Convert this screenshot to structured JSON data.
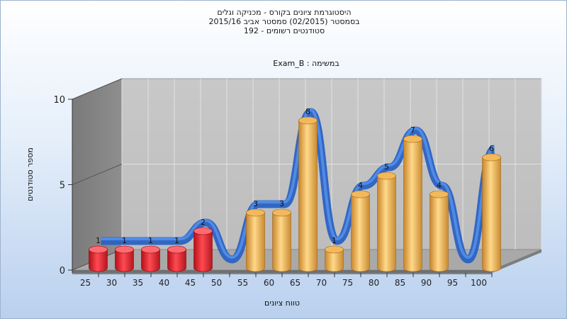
{
  "header": {
    "title_line1": "היסטוגרמת ציונים בקורס - מכניקה וגלים",
    "title_line2": "בסמסטר  (02/2015)  סמסטר אביב 2015/16",
    "title_line3": "192 - סטודנטים רשומים"
  },
  "chart_data": {
    "type": "bar",
    "subtitle": "Exam_B : במשימה",
    "xlabel": "טווח ציונים",
    "ylabel": "מספר סטודנטים",
    "categories": [
      "25",
      "30",
      "35",
      "40",
      "45",
      "50",
      "55",
      "60",
      "65",
      "70",
      "75",
      "80",
      "85",
      "90",
      "95",
      "100"
    ],
    "series": [
      {
        "values": [
          1,
          1,
          1,
          1,
          2,
          null,
          3,
          3,
          8,
          1,
          4,
          5,
          7,
          4,
          null,
          6
        ]
      }
    ],
    "bar_colors": {
      "failing": "#e0202a",
      "passing": "#e8a840",
      "curve": "#2f6fd0"
    },
    "yticks": [
      0,
      5,
      10
    ],
    "ylim": [
      0,
      10
    ],
    "grid": true
  }
}
